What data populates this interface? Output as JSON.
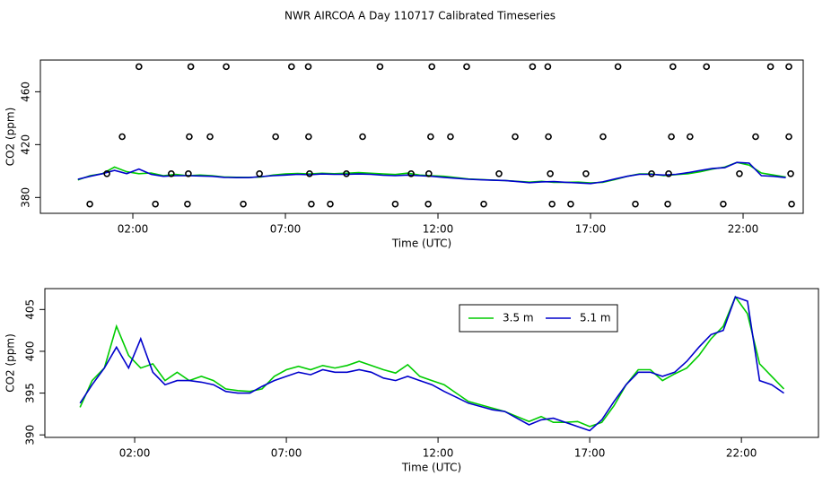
{
  "chart_data": [
    {
      "type": "scatter",
      "title": "NWR AIRCOA A  Day 110717  Calibrated Timeseries",
      "xlabel": "Time (UTC)",
      "ylabel": "CO2 (ppm)",
      "marker_color": "#000000",
      "x": [
        2.2,
        3.9,
        5.06,
        7.2,
        7.75,
        10.1,
        11.8,
        12.94,
        15.1,
        15.6,
        17.9,
        19.7,
        20.8,
        22.9,
        23.5,
        1.65,
        3.85,
        4.53,
        6.68,
        7.76,
        9.53,
        11.76,
        12.41,
        14.53,
        15.62,
        17.41,
        19.65,
        20.26,
        22.41,
        23.5,
        1.15,
        3.26,
        3.82,
        6.15,
        7.79,
        9.0,
        11.12,
        11.7,
        14.0,
        15.68,
        16.85,
        19.0,
        19.56,
        21.88,
        23.56,
        0.59,
        2.74,
        3.79,
        5.62,
        7.85,
        8.47,
        10.6,
        11.68,
        13.5,
        15.74,
        16.35,
        18.47,
        19.53,
        21.35,
        23.59
      ],
      "values": [
        479,
        479,
        479,
        479,
        479,
        479,
        479,
        479,
        479,
        479,
        479,
        479,
        479,
        479,
        479,
        426,
        426,
        426,
        426,
        426,
        426,
        426,
        426,
        426,
        426,
        426,
        426,
        426,
        426,
        426,
        398,
        398,
        398,
        398,
        398,
        398,
        398,
        398,
        398,
        398,
        398,
        398,
        398,
        398,
        398,
        375,
        375,
        375,
        375,
        375,
        375,
        375,
        375,
        375,
        375,
        375,
        375,
        375,
        375,
        375
      ],
      "xlim": [
        -1.03,
        23.97
      ],
      "ylim": [
        368,
        484
      ],
      "xticks": [
        {
          "value": 2,
          "label": "02:00"
        },
        {
          "value": 7,
          "label": "07:00"
        },
        {
          "value": 12,
          "label": "12:00"
        },
        {
          "value": 17,
          "label": "17:00"
        },
        {
          "value": 22,
          "label": "22:00"
        }
      ],
      "yticks": [
        380,
        420,
        460
      ]
    },
    {
      "type": "line",
      "xlabel": "Time (UTC)",
      "ylabel": "CO2 (ppm)",
      "legend": "top-right",
      "x": [
        0.2,
        0.6,
        1.0,
        1.4,
        1.8,
        2.2,
        2.6,
        3.0,
        3.4,
        3.8,
        4.2,
        4.6,
        5.0,
        5.4,
        5.8,
        6.2,
        6.6,
        7.0,
        7.4,
        7.8,
        8.2,
        8.6,
        9.0,
        9.4,
        9.8,
        10.2,
        10.6,
        11.0,
        11.4,
        11.8,
        12.2,
        12.6,
        13.0,
        13.4,
        13.8,
        14.2,
        14.6,
        15.0,
        15.4,
        15.8,
        16.2,
        16.6,
        17.0,
        17.4,
        17.8,
        18.2,
        18.6,
        19.0,
        19.4,
        19.8,
        20.2,
        20.6,
        21.0,
        21.4,
        21.8,
        22.2,
        22.6,
        23.0,
        23.4
      ],
      "series": [
        {
          "name": "3.5 m",
          "color": "#00cc00",
          "values": [
            393.3,
            396.5,
            398.0,
            403.0,
            399.5,
            398.0,
            398.5,
            396.5,
            397.5,
            396.5,
            397.0,
            396.5,
            395.5,
            395.3,
            395.2,
            395.5,
            397.0,
            397.8,
            398.2,
            397.8,
            398.3,
            398.0,
            398.3,
            398.8,
            398.3,
            397.8,
            397.4,
            398.4,
            397.0,
            396.5,
            396.0,
            395.0,
            394.0,
            393.6,
            393.2,
            392.8,
            392.2,
            391.6,
            392.2,
            391.5,
            391.5,
            391.6,
            391.0,
            391.5,
            393.5,
            396.0,
            397.8,
            397.8,
            396.5,
            397.3,
            398.0,
            399.5,
            401.5,
            403.0,
            406.5,
            404.5,
            398.5,
            397.0,
            395.5
          ]
        },
        {
          "name": "5.1 m",
          "color": "#0000cc",
          "values": [
            393.8,
            396.0,
            398.0,
            400.5,
            398.0,
            401.5,
            397.5,
            396.0,
            396.5,
            396.5,
            396.3,
            396.0,
            395.2,
            395.0,
            395.0,
            395.8,
            396.5,
            397.0,
            397.5,
            397.2,
            397.8,
            397.5,
            397.5,
            397.8,
            397.5,
            396.8,
            396.5,
            397.0,
            396.5,
            396.0,
            395.2,
            394.5,
            393.8,
            393.4,
            393.0,
            392.8,
            392.0,
            391.2,
            391.8,
            392.0,
            391.5,
            391.0,
            390.5,
            391.8,
            394.0,
            396.0,
            397.5,
            397.5,
            397.0,
            397.5,
            398.8,
            400.5,
            402.0,
            402.5,
            406.5,
            406.0,
            396.5,
            396.0,
            395.0
          ]
        }
      ],
      "xlim": [
        -0.96,
        24.54
      ],
      "ylim": [
        389.7,
        407.5
      ],
      "xticks": [
        {
          "value": 2,
          "label": "02:00"
        },
        {
          "value": 7,
          "label": "07:00"
        },
        {
          "value": 12,
          "label": "12:00"
        },
        {
          "value": 17,
          "label": "17:00"
        },
        {
          "value": 22,
          "label": "22:00"
        }
      ],
      "yticks": [
        390,
        395,
        400,
        405
      ]
    }
  ]
}
